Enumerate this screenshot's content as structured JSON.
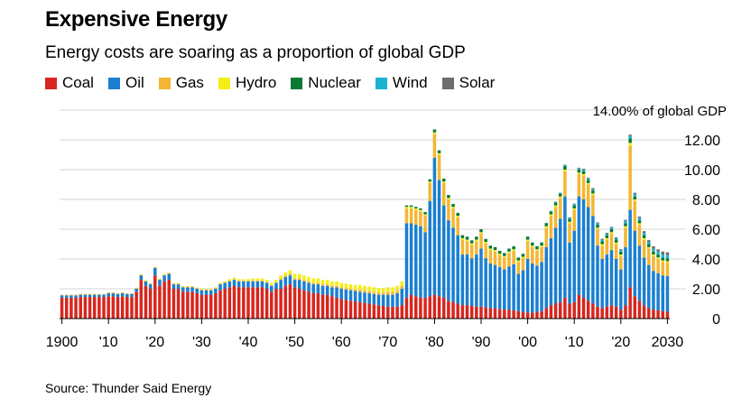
{
  "title": "Expensive Energy",
  "subtitle": "Energy costs are soaring as a proportion of global GDP",
  "source": "Source: Thunder Said Energy",
  "chart_data": {
    "type": "bar",
    "stacked": true,
    "unit_label": "14.00% of global GDP",
    "ylim": [
      0,
      14
    ],
    "y_ticks": [
      "0",
      "2.00",
      "4.00",
      "6.00",
      "8.00",
      "10.00",
      "12.00"
    ],
    "x_tick_labels": [
      "1900",
      "'10",
      "'20",
      "'30",
      "'40",
      "'50",
      "'60",
      "'70",
      "'80",
      "'90",
      "'00",
      "'10",
      "'20",
      "2030"
    ],
    "grid": true,
    "legend_position": "top-left",
    "x": [
      1900,
      1901,
      1902,
      1903,
      1904,
      1905,
      1906,
      1907,
      1908,
      1909,
      1910,
      1911,
      1912,
      1913,
      1914,
      1915,
      1916,
      1917,
      1918,
      1919,
      1920,
      1921,
      1922,
      1923,
      1924,
      1925,
      1926,
      1927,
      1928,
      1929,
      1930,
      1931,
      1932,
      1933,
      1934,
      1935,
      1936,
      1937,
      1938,
      1939,
      1940,
      1941,
      1942,
      1943,
      1944,
      1945,
      1946,
      1947,
      1948,
      1949,
      1950,
      1951,
      1952,
      1953,
      1954,
      1955,
      1956,
      1957,
      1958,
      1959,
      1960,
      1961,
      1962,
      1963,
      1964,
      1965,
      1966,
      1967,
      1968,
      1969,
      1970,
      1971,
      1972,
      1973,
      1974,
      1975,
      1976,
      1977,
      1978,
      1979,
      1980,
      1981,
      1982,
      1983,
      1984,
      1985,
      1986,
      1987,
      1988,
      1989,
      1990,
      1991,
      1992,
      1993,
      1994,
      1995,
      1996,
      1997,
      1998,
      1999,
      2000,
      2001,
      2002,
      2003,
      2004,
      2005,
      2006,
      2007,
      2008,
      2009,
      2010,
      2011,
      2012,
      2013,
      2014,
      2015,
      2016,
      2017,
      2018,
      2019,
      2020,
      2021,
      2022,
      2023,
      2024,
      2025,
      2026,
      2027,
      2028,
      2029,
      2030
    ],
    "series": [
      {
        "name": "Coal",
        "color": "#d7261e",
        "values": [
          1.4,
          1.4,
          1.4,
          1.4,
          1.45,
          1.45,
          1.45,
          1.45,
          1.45,
          1.45,
          1.5,
          1.5,
          1.45,
          1.5,
          1.45,
          1.45,
          1.8,
          2.6,
          2.2,
          2.0,
          2.9,
          2.2,
          2.5,
          2.6,
          2.0,
          2.0,
          1.8,
          1.8,
          1.8,
          1.7,
          1.6,
          1.6,
          1.6,
          1.7,
          1.9,
          2.0,
          2.1,
          2.2,
          2.1,
          2.1,
          2.1,
          2.1,
          2.1,
          2.1,
          2.0,
          1.8,
          2.0,
          2.0,
          2.2,
          2.3,
          2.1,
          2.0,
          1.9,
          1.8,
          1.7,
          1.7,
          1.6,
          1.6,
          1.5,
          1.4,
          1.3,
          1.25,
          1.2,
          1.15,
          1.1,
          1.05,
          1.0,
          0.95,
          0.9,
          0.85,
          0.8,
          0.8,
          0.8,
          0.9,
          1.4,
          1.6,
          1.5,
          1.4,
          1.4,
          1.5,
          1.6,
          1.5,
          1.4,
          1.2,
          1.1,
          1.0,
          0.9,
          0.9,
          0.85,
          0.8,
          0.8,
          0.75,
          0.7,
          0.7,
          0.65,
          0.6,
          0.6,
          0.55,
          0.5,
          0.45,
          0.4,
          0.4,
          0.45,
          0.5,
          0.7,
          0.9,
          1.0,
          1.1,
          1.4,
          1.0,
          1.1,
          1.6,
          1.4,
          1.2,
          1.0,
          0.8,
          0.7,
          0.8,
          0.9,
          0.8,
          0.6,
          0.9,
          2.1,
          1.5,
          1.2,
          0.9,
          0.7,
          0.6,
          0.55,
          0.5,
          0.45
        ]
      },
      {
        "name": "Oil",
        "color": "#1a7fd1",
        "values": [
          0.15,
          0.15,
          0.15,
          0.15,
          0.15,
          0.15,
          0.15,
          0.15,
          0.15,
          0.15,
          0.2,
          0.2,
          0.2,
          0.2,
          0.2,
          0.2,
          0.2,
          0.3,
          0.3,
          0.3,
          0.5,
          0.4,
          0.4,
          0.4,
          0.3,
          0.3,
          0.3,
          0.3,
          0.3,
          0.3,
          0.3,
          0.3,
          0.3,
          0.3,
          0.4,
          0.4,
          0.4,
          0.4,
          0.4,
          0.4,
          0.4,
          0.4,
          0.4,
          0.4,
          0.4,
          0.4,
          0.4,
          0.6,
          0.6,
          0.6,
          0.5,
          0.6,
          0.6,
          0.6,
          0.6,
          0.6,
          0.6,
          0.6,
          0.6,
          0.7,
          0.7,
          0.7,
          0.7,
          0.7,
          0.7,
          0.7,
          0.7,
          0.7,
          0.7,
          0.75,
          0.8,
          0.8,
          0.9,
          1.1,
          5.0,
          4.8,
          4.8,
          4.8,
          4.4,
          6.4,
          9.2,
          7.8,
          6.2,
          5.4,
          5.0,
          4.6,
          3.4,
          3.4,
          3.2,
          3.5,
          3.9,
          3.3,
          3.0,
          2.9,
          2.8,
          2.7,
          2.9,
          3.1,
          2.5,
          2.8,
          3.6,
          3.3,
          3.1,
          3.3,
          4.1,
          4.5,
          5.1,
          5.6,
          6.8,
          4.1,
          4.8,
          6.6,
          6.6,
          6.3,
          5.9,
          4.1,
          3.3,
          3.5,
          3.7,
          3.2,
          2.7,
          3.9,
          5.2,
          4.4,
          3.7,
          3.2,
          2.9,
          2.6,
          2.5,
          2.4,
          2.4
        ]
      },
      {
        "name": "Gas",
        "color": "#f4b633",
        "values": [
          0.05,
          0.05,
          0.05,
          0.05,
          0.05,
          0.05,
          0.05,
          0.05,
          0.05,
          0.05,
          0.05,
          0.05,
          0.05,
          0.05,
          0.05,
          0.05,
          0.05,
          0.05,
          0.05,
          0.05,
          0.05,
          0.05,
          0.05,
          0.05,
          0.05,
          0.05,
          0.05,
          0.05,
          0.05,
          0.05,
          0.05,
          0.05,
          0.05,
          0.05,
          0.05,
          0.05,
          0.05,
          0.05,
          0.05,
          0.05,
          0.05,
          0.05,
          0.05,
          0.05,
          0.05,
          0.05,
          0.05,
          0.1,
          0.1,
          0.1,
          0.1,
          0.1,
          0.1,
          0.1,
          0.1,
          0.1,
          0.1,
          0.1,
          0.1,
          0.1,
          0.1,
          0.1,
          0.1,
          0.1,
          0.15,
          0.15,
          0.15,
          0.15,
          0.15,
          0.15,
          0.2,
          0.2,
          0.2,
          0.2,
          1.0,
          1.0,
          1.0,
          1.0,
          1.1,
          1.2,
          1.6,
          1.7,
          1.5,
          1.4,
          1.3,
          1.2,
          1.0,
          0.9,
          0.9,
          0.9,
          1.0,
          1.0,
          0.9,
          0.9,
          0.8,
          0.8,
          0.9,
          0.9,
          0.8,
          0.8,
          1.2,
          1.1,
          1.0,
          1.0,
          1.3,
          1.5,
          1.4,
          1.4,
          1.7,
          1.3,
          1.4,
          1.5,
          1.6,
          1.5,
          1.4,
          1.1,
          0.9,
          1.0,
          1.1,
          1.0,
          0.9,
          1.3,
          4.3,
          2.0,
          1.4,
          1.2,
          1.1,
          1.0,
          0.95,
          0.9,
          0.9
        ]
      },
      {
        "name": "Hydro",
        "color": "#f5ee15",
        "values": [
          0,
          0,
          0,
          0,
          0,
          0,
          0,
          0,
          0,
          0,
          0,
          0,
          0,
          0,
          0,
          0,
          0.02,
          0.02,
          0.02,
          0.02,
          0.03,
          0.03,
          0.03,
          0.03,
          0.03,
          0.03,
          0.03,
          0.03,
          0.03,
          0.03,
          0.05,
          0.05,
          0.05,
          0.05,
          0.05,
          0.05,
          0.1,
          0.1,
          0.1,
          0.1,
          0.1,
          0.15,
          0.15,
          0.15,
          0.15,
          0.15,
          0.15,
          0.2,
          0.2,
          0.25,
          0.3,
          0.3,
          0.3,
          0.3,
          0.3,
          0.3,
          0.3,
          0.3,
          0.3,
          0.3,
          0.3,
          0.3,
          0.3,
          0.3,
          0.3,
          0.3,
          0.3,
          0.3,
          0.3,
          0.3,
          0.3,
          0.3,
          0.3,
          0.3,
          0.1,
          0.1,
          0.1,
          0.1,
          0.1,
          0.1,
          0.1,
          0.1,
          0.1,
          0.1,
          0.1,
          0.1,
          0.1,
          0.1,
          0.1,
          0.1,
          0.1,
          0.1,
          0.1,
          0.1,
          0.1,
          0.1,
          0.1,
          0.1,
          0.1,
          0.1,
          0.1,
          0.1,
          0.1,
          0.1,
          0.1,
          0.1,
          0.1,
          0.1,
          0.1,
          0.1,
          0.1,
          0.1,
          0.1,
          0.1,
          0.1,
          0.1,
          0.1,
          0.1,
          0.1,
          0.1,
          0.1,
          0.1,
          0.2,
          0.1,
          0.1,
          0.1,
          0.1,
          0.1,
          0.1,
          0.1,
          0.1
        ]
      },
      {
        "name": "Nuclear",
        "color": "#0a7a35",
        "values": [
          0,
          0,
          0,
          0,
          0,
          0,
          0,
          0,
          0,
          0,
          0,
          0,
          0,
          0,
          0,
          0,
          0,
          0,
          0,
          0,
          0,
          0,
          0,
          0,
          0,
          0,
          0,
          0,
          0,
          0,
          0,
          0,
          0,
          0,
          0,
          0,
          0,
          0,
          0,
          0,
          0,
          0,
          0,
          0,
          0,
          0,
          0,
          0,
          0,
          0,
          0,
          0,
          0,
          0,
          0,
          0,
          0,
          0,
          0,
          0,
          0,
          0,
          0,
          0,
          0,
          0,
          0,
          0,
          0,
          0,
          0,
          0,
          0,
          0,
          0.1,
          0.1,
          0.1,
          0.1,
          0.15,
          0.15,
          0.2,
          0.2,
          0.2,
          0.2,
          0.2,
          0.2,
          0.2,
          0.2,
          0.2,
          0.2,
          0.2,
          0.2,
          0.2,
          0.2,
          0.2,
          0.2,
          0.2,
          0.2,
          0.2,
          0.2,
          0.2,
          0.2,
          0.2,
          0.2,
          0.2,
          0.2,
          0.2,
          0.2,
          0.25,
          0.2,
          0.2,
          0.2,
          0.2,
          0.2,
          0.2,
          0.2,
          0.2,
          0.2,
          0.2,
          0.2,
          0.2,
          0.2,
          0.3,
          0.2,
          0.2,
          0.2,
          0.2,
          0.2,
          0.2,
          0.2,
          0.2
        ]
      },
      {
        "name": "Wind",
        "color": "#1bb3d0",
        "values": [
          0,
          0,
          0,
          0,
          0,
          0,
          0,
          0,
          0,
          0,
          0,
          0,
          0,
          0,
          0,
          0,
          0,
          0,
          0,
          0,
          0,
          0,
          0,
          0,
          0,
          0,
          0,
          0,
          0,
          0,
          0,
          0,
          0,
          0,
          0,
          0,
          0,
          0,
          0,
          0,
          0,
          0,
          0,
          0,
          0,
          0,
          0,
          0,
          0,
          0,
          0,
          0,
          0,
          0,
          0,
          0,
          0,
          0,
          0,
          0,
          0,
          0,
          0,
          0,
          0,
          0,
          0,
          0,
          0,
          0,
          0,
          0,
          0,
          0,
          0,
          0,
          0,
          0,
          0,
          0,
          0,
          0,
          0,
          0,
          0,
          0,
          0,
          0,
          0,
          0,
          0,
          0,
          0,
          0,
          0,
          0,
          0,
          0,
          0,
          0,
          0.02,
          0.02,
          0.02,
          0.02,
          0.03,
          0.03,
          0.05,
          0.05,
          0.06,
          0.07,
          0.08,
          0.08,
          0.1,
          0.1,
          0.1,
          0.1,
          0.1,
          0.1,
          0.1,
          0.1,
          0.1,
          0.15,
          0.15,
          0.15,
          0.15,
          0.15,
          0.15,
          0.2,
          0.2,
          0.2,
          0.2
        ]
      },
      {
        "name": "Solar",
        "color": "#6e6e6e",
        "values": [
          0,
          0,
          0,
          0,
          0,
          0,
          0,
          0,
          0,
          0,
          0,
          0,
          0,
          0,
          0,
          0,
          0,
          0,
          0,
          0,
          0,
          0,
          0,
          0,
          0,
          0,
          0,
          0,
          0,
          0,
          0,
          0,
          0,
          0,
          0,
          0,
          0,
          0,
          0,
          0,
          0,
          0,
          0,
          0,
          0,
          0,
          0,
          0,
          0,
          0,
          0,
          0,
          0,
          0,
          0,
          0,
          0,
          0,
          0,
          0,
          0,
          0,
          0,
          0,
          0,
          0,
          0,
          0,
          0,
          0,
          0,
          0,
          0,
          0,
          0,
          0,
          0,
          0,
          0,
          0,
          0,
          0,
          0,
          0,
          0,
          0,
          0,
          0,
          0,
          0,
          0,
          0,
          0,
          0,
          0,
          0,
          0,
          0,
          0,
          0,
          0,
          0,
          0,
          0,
          0,
          0,
          0,
          0,
          0.02,
          0.03,
          0.04,
          0.05,
          0.06,
          0.06,
          0.06,
          0.06,
          0.06,
          0.06,
          0.06,
          0.06,
          0.06,
          0.08,
          0.1,
          0.1,
          0.1,
          0.12,
          0.12,
          0.15,
          0.15,
          0.2,
          0.2
        ]
      }
    ]
  }
}
